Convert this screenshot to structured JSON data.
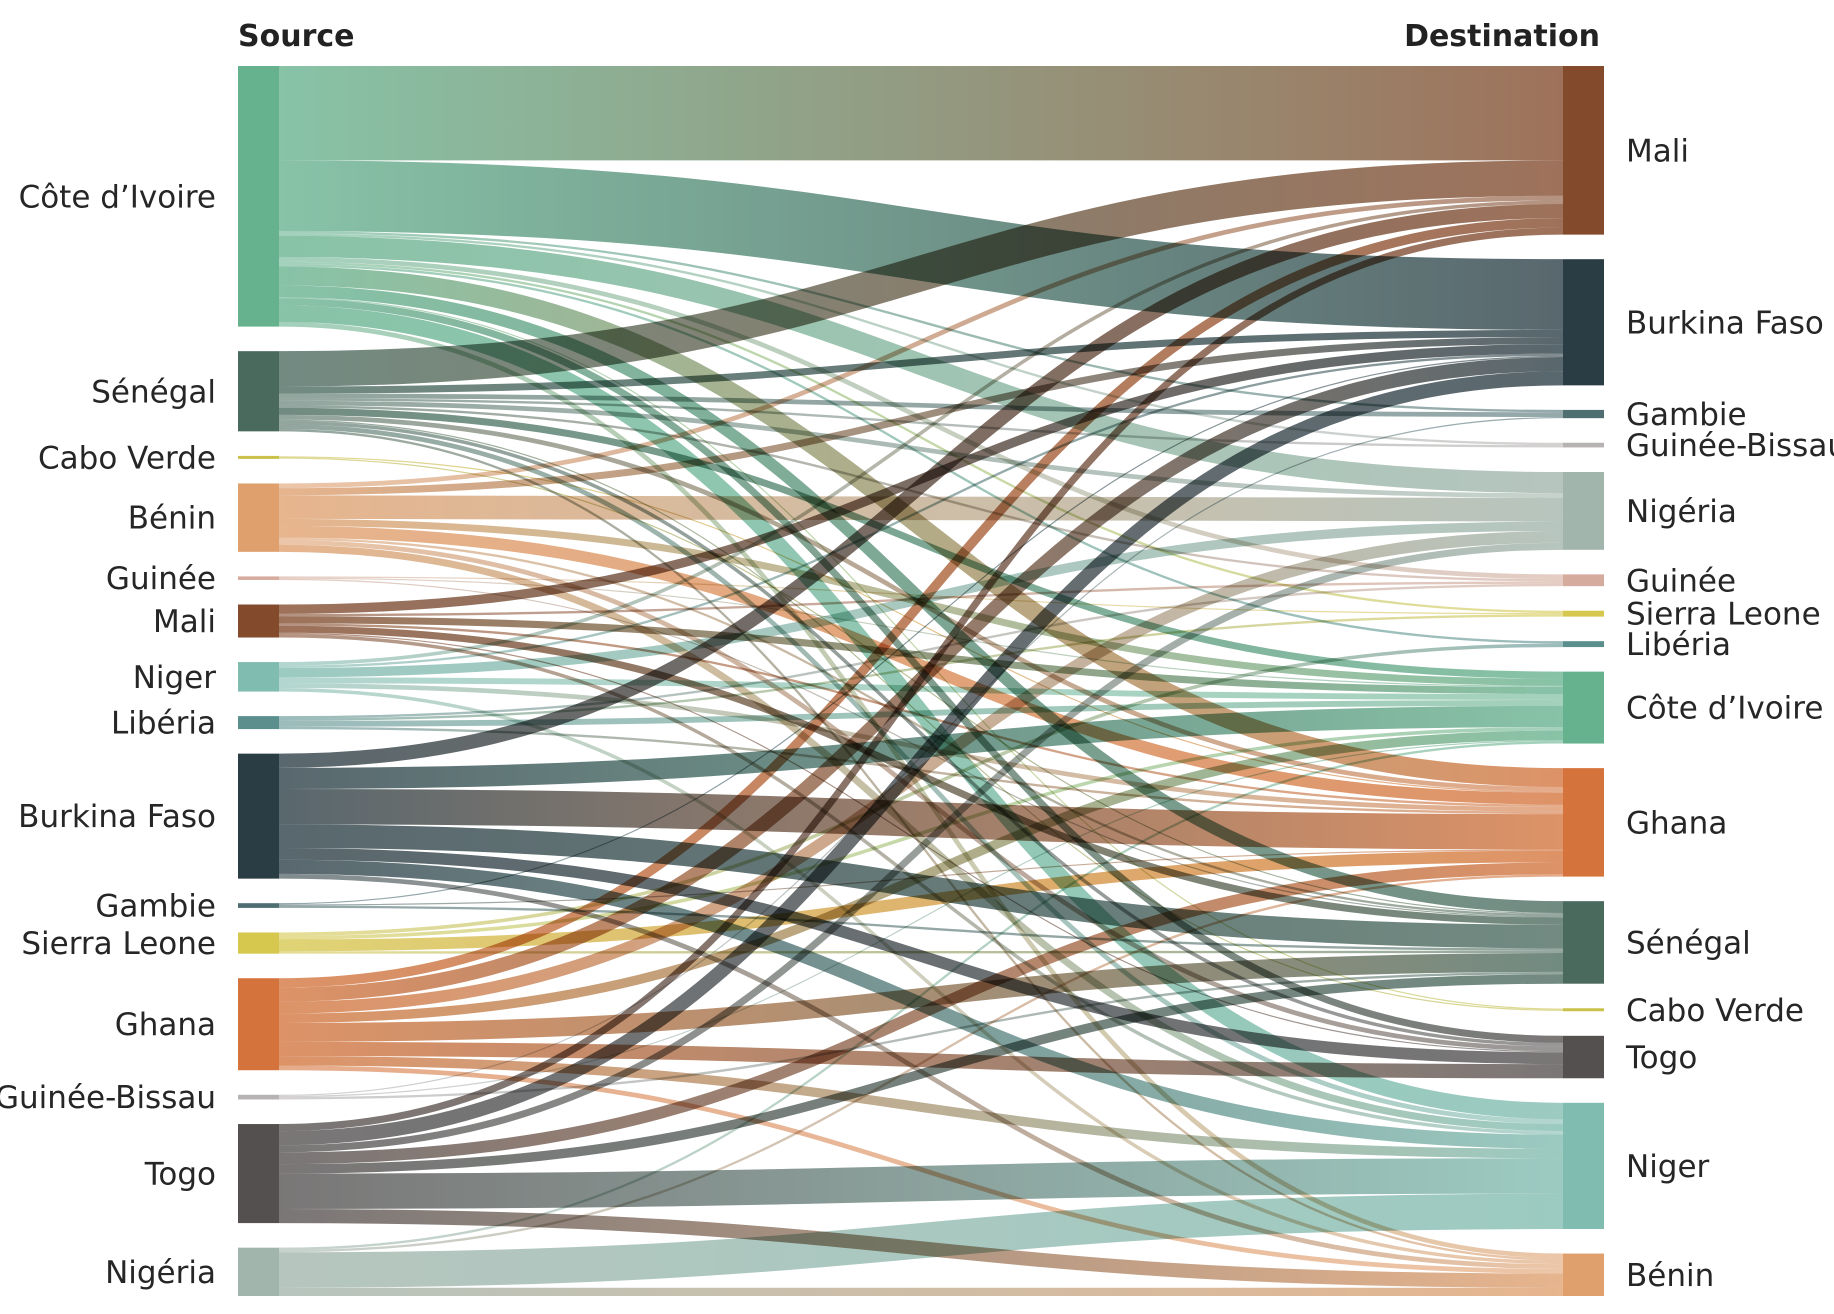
{
  "headers": {
    "source": "Source",
    "destination": "Destination"
  },
  "sources": [
    {
      "id": "s_ci",
      "label": "Côte d’Ivoire",
      "color": "#66b28e"
    },
    {
      "id": "s_sn",
      "label": "Sénégal",
      "color": "#4a6a5e"
    },
    {
      "id": "s_cv",
      "label": "Cabo Verde",
      "color": "#c9c14a"
    },
    {
      "id": "s_bj",
      "label": "Bénin",
      "color": "#e0a06e"
    },
    {
      "id": "s_gn",
      "label": "Guinée",
      "color": "#d4ab9c"
    },
    {
      "id": "s_ml",
      "label": "Mali",
      "color": "#834a2c"
    },
    {
      "id": "s_ne",
      "label": "Niger",
      "color": "#80bcb0"
    },
    {
      "id": "s_lr",
      "label": "Libéria",
      "color": "#5a8f8e"
    },
    {
      "id": "s_bf",
      "label": "Burkina Faso",
      "color": "#2a3d45"
    },
    {
      "id": "s_gm",
      "label": "Gambie",
      "color": "#4e6e72"
    },
    {
      "id": "s_sl",
      "label": "Sierra Leone",
      "color": "#d6c84e"
    },
    {
      "id": "s_gh",
      "label": "Ghana",
      "color": "#d4743c"
    },
    {
      "id": "s_gw",
      "label": "Guinée-Bissau",
      "color": "#b8b3b3"
    },
    {
      "id": "s_tg",
      "label": "Togo",
      "color": "#545050"
    },
    {
      "id": "s_ng",
      "label": "Nigéria",
      "color": "#a2b5ac"
    }
  ],
  "destinations": [
    {
      "id": "d_ml",
      "label": "Mali",
      "color": "#834a2c"
    },
    {
      "id": "d_bf",
      "label": "Burkina Faso",
      "color": "#2a3d45"
    },
    {
      "id": "d_gm",
      "label": "Gambie",
      "color": "#4e6e72"
    },
    {
      "id": "d_gw",
      "label": "Guinée-Bissau",
      "color": "#b8b3b3"
    },
    {
      "id": "d_ng",
      "label": "Nigéria",
      "color": "#a2b5ac"
    },
    {
      "id": "d_gn",
      "label": "Guinée",
      "color": "#d4ab9c"
    },
    {
      "id": "d_sl",
      "label": "Sierra Leone",
      "color": "#d6c84e"
    },
    {
      "id": "d_lr",
      "label": "Libéria",
      "color": "#5a8f8e"
    },
    {
      "id": "d_ci",
      "label": "Côte d’Ivoire",
      "color": "#66b28e"
    },
    {
      "id": "d_gh",
      "label": "Ghana",
      "color": "#d4743c"
    },
    {
      "id": "d_sn",
      "label": "Sénégal",
      "color": "#4a6a5e"
    },
    {
      "id": "d_cv",
      "label": "Cabo Verde",
      "color": "#c9c14a"
    },
    {
      "id": "d_tg",
      "label": "Togo",
      "color": "#545050"
    },
    {
      "id": "d_ne",
      "label": "Niger",
      "color": "#80bcb0"
    },
    {
      "id": "d_bj",
      "label": "Bénin",
      "color": "#e0a06e"
    }
  ],
  "flows": [
    {
      "source": "s_ci",
      "target": "d_ml",
      "value": 80
    },
    {
      "source": "s_ci",
      "target": "d_bf",
      "value": 60
    },
    {
      "source": "s_ci",
      "target": "d_gm",
      "value": 2
    },
    {
      "source": "s_ci",
      "target": "d_gw",
      "value": 2
    },
    {
      "source": "s_ci",
      "target": "d_ng",
      "value": 18
    },
    {
      "source": "s_ci",
      "target": "d_gn",
      "value": 4
    },
    {
      "source": "s_ci",
      "target": "d_sl",
      "value": 2
    },
    {
      "source": "s_ci",
      "target": "d_lr",
      "value": 2
    },
    {
      "source": "s_ci",
      "target": "d_gh",
      "value": 16
    },
    {
      "source": "s_ci",
      "target": "d_sn",
      "value": 10
    },
    {
      "source": "s_ci",
      "target": "d_cv",
      "value": 1
    },
    {
      "source": "s_ci",
      "target": "d_tg",
      "value": 6
    },
    {
      "source": "s_ci",
      "target": "d_ne",
      "value": 14
    },
    {
      "source": "s_ci",
      "target": "d_bj",
      "value": 4
    },
    {
      "source": "s_sn",
      "target": "d_ml",
      "value": 30
    },
    {
      "source": "s_sn",
      "target": "d_bf",
      "value": 6
    },
    {
      "source": "s_sn",
      "target": "d_gm",
      "value": 4
    },
    {
      "source": "s_sn",
      "target": "d_gw",
      "value": 2
    },
    {
      "source": "s_sn",
      "target": "d_ng",
      "value": 4
    },
    {
      "source": "s_sn",
      "target": "d_gn",
      "value": 2
    },
    {
      "source": "s_sn",
      "target": "d_ci",
      "value": 6
    },
    {
      "source": "s_sn",
      "target": "d_gh",
      "value": 4
    },
    {
      "source": "s_sn",
      "target": "d_cv",
      "value": 1
    },
    {
      "source": "s_sn",
      "target": "d_tg",
      "value": 3
    },
    {
      "source": "s_sn",
      "target": "d_ne",
      "value": 4
    },
    {
      "source": "s_sn",
      "target": "d_bj",
      "value": 2
    },
    {
      "source": "s_cv",
      "target": "d_sn",
      "value": 1
    },
    {
      "source": "s_cv",
      "target": "d_gh",
      "value": 1
    },
    {
      "source": "s_bj",
      "target": "d_ml",
      "value": 4
    },
    {
      "source": "s_bj",
      "target": "d_bf",
      "value": 6
    },
    {
      "source": "s_bj",
      "target": "d_ng",
      "value": 20
    },
    {
      "source": "s_bj",
      "target": "d_ci",
      "value": 6
    },
    {
      "source": "s_bj",
      "target": "d_gh",
      "value": 10
    },
    {
      "source": "s_bj",
      "target": "d_sn",
      "value": 2
    },
    {
      "source": "s_bj",
      "target": "d_tg",
      "value": 4
    },
    {
      "source": "s_bj",
      "target": "d_ne",
      "value": 6
    },
    {
      "source": "s_gn",
      "target": "d_sn",
      "value": 1
    },
    {
      "source": "s_gn",
      "target": "d_ci",
      "value": 1
    },
    {
      "source": "s_gn",
      "target": "d_sl",
      "value": 1
    },
    {
      "source": "s_ml",
      "target": "d_bf",
      "value": 8
    },
    {
      "source": "s_ml",
      "target": "d_ci",
      "value": 6
    },
    {
      "source": "s_ml",
      "target": "d_sn",
      "value": 6
    },
    {
      "source": "s_ml",
      "target": "d_gn",
      "value": 2
    },
    {
      "source": "s_ml",
      "target": "d_gh",
      "value": 2
    },
    {
      "source": "s_ml",
      "target": "d_ne",
      "value": 3
    },
    {
      "source": "s_ml",
      "target": "d_tg",
      "value": 1
    },
    {
      "source": "s_ne",
      "target": "d_ml",
      "value": 3
    },
    {
      "source": "s_ne",
      "target": "d_bf",
      "value": 2
    },
    {
      "source": "s_ne",
      "target": "d_ng",
      "value": 8
    },
    {
      "source": "s_ne",
      "target": "d_ci",
      "value": 5
    },
    {
      "source": "s_ne",
      "target": "d_gh",
      "value": 4
    },
    {
      "source": "s_ne",
      "target": "d_bj",
      "value": 3
    },
    {
      "source": "s_lr",
      "target": "d_ci",
      "value": 5
    },
    {
      "source": "s_lr",
      "target": "d_gn",
      "value": 2
    },
    {
      "source": "s_lr",
      "target": "d_sl",
      "value": 2
    },
    {
      "source": "s_lr",
      "target": "d_gh",
      "value": 2
    },
    {
      "source": "s_bf",
      "target": "d_ml",
      "value": 12
    },
    {
      "source": "s_bf",
      "target": "d_ci",
      "value": 18
    },
    {
      "source": "s_bf",
      "target": "d_gh",
      "value": 30
    },
    {
      "source": "s_bf",
      "target": "d_sn",
      "value": 20
    },
    {
      "source": "s_bf",
      "target": "d_tg",
      "value": 10
    },
    {
      "source": "s_bf",
      "target": "d_ne",
      "value": 12
    },
    {
      "source": "s_bf",
      "target": "d_bj",
      "value": 4
    },
    {
      "source": "s_gm",
      "target": "d_sn",
      "value": 2
    },
    {
      "source": "s_gm",
      "target": "d_bf",
      "value": 1
    },
    {
      "source": "s_gm",
      "target": "d_gh",
      "value": 1
    },
    {
      "source": "s_sl",
      "target": "d_gh",
      "value": 10
    },
    {
      "source": "s_sl",
      "target": "d_lr",
      "value": 3
    },
    {
      "source": "s_sl",
      "target": "d_ci",
      "value": 3
    },
    {
      "source": "s_sl",
      "target": "d_sn",
      "value": 2
    },
    {
      "source": "s_gh",
      "target": "d_ml",
      "value": 8
    },
    {
      "source": "s_gh",
      "target": "d_bf",
      "value": 12
    },
    {
      "source": "s_gh",
      "target": "d_ng",
      "value": 10
    },
    {
      "source": "s_gh",
      "target": "d_ci",
      "value": 8
    },
    {
      "source": "s_gh",
      "target": "d_sn",
      "value": 16
    },
    {
      "source": "s_gh",
      "target": "d_tg",
      "value": 12
    },
    {
      "source": "s_gh",
      "target": "d_ne",
      "value": 8
    },
    {
      "source": "s_gh",
      "target": "d_bj",
      "value": 4
    },
    {
      "source": "s_gw",
      "target": "d_sn",
      "value": 2
    },
    {
      "source": "s_gw",
      "target": "d_ci",
      "value": 1
    },
    {
      "source": "s_gw",
      "target": "d_gm",
      "value": 1
    },
    {
      "source": "s_tg",
      "target": "d_ml",
      "value": 6
    },
    {
      "source": "s_tg",
      "target": "d_bf",
      "value": 12
    },
    {
      "source": "s_tg",
      "target": "d_ng",
      "value": 6
    },
    {
      "source": "s_tg",
      "target": "d_gh",
      "value": 10
    },
    {
      "source": "s_tg",
      "target": "d_sn",
      "value": 8
    },
    {
      "source": "s_tg",
      "target": "d_ne",
      "value": 30
    },
    {
      "source": "s_tg",
      "target": "d_bj",
      "value": 12
    },
    {
      "source": "s_ng",
      "target": "d_ne",
      "value": 30
    },
    {
      "source": "s_ng",
      "target": "d_bj",
      "value": 7
    },
    {
      "source": "s_ng",
      "target": "d_gh",
      "value": 2
    },
    {
      "source": "s_ng",
      "target": "d_ci",
      "value": 2
    }
  ]
}
